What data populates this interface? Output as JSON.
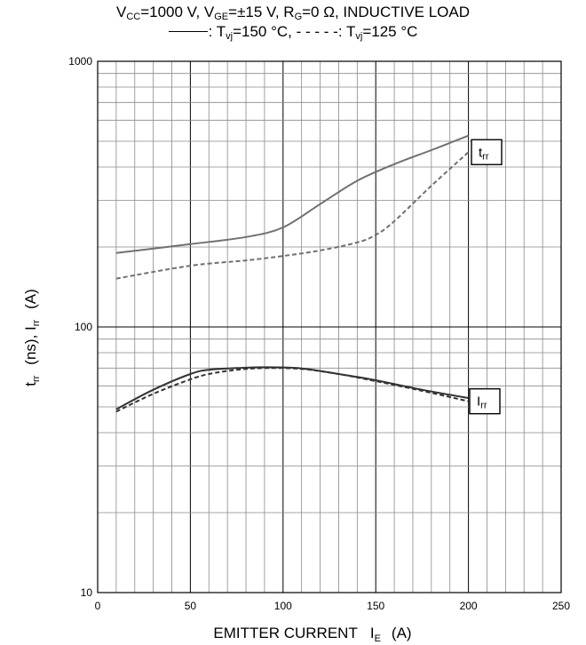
{
  "header": {
    "line1": {
      "v": "V",
      "v_sub": "CC",
      "a": "=1000 V, V",
      "a_sub": "GE",
      "b": "=±15 V, R",
      "b_sub": "G",
      "c": "=0 Ω, INDUCTIVE LOAD"
    },
    "line2": {
      "solid_legend": ": T",
      "solid_sub": "vj",
      "solid_value": "=150 °C, ",
      "dashed_legend": "- - - - -: T",
      "dashed_sub": "vj",
      "dashed_value": "=125 °C"
    }
  },
  "chart_data": {
    "type": "line",
    "xlabel": "EMITTER CURRENT",
    "xlabel_symbol": "I",
    "xlabel_symbol_sub": "E",
    "xlabel_unit": "(A)",
    "ylabel_t": "t",
    "ylabel_t_sub": "rr",
    "ylabel_mid": "(ns), I",
    "ylabel_i_sub": "rr",
    "ylabel_unit": "(A)",
    "xlim": [
      0,
      250
    ],
    "ylim": [
      10,
      1000
    ],
    "y_scale": "log",
    "x_ticks": [
      "0",
      "50",
      "100",
      "150",
      "200",
      "250"
    ],
    "y_ticks": [
      "10",
      "100",
      "1000"
    ],
    "grid": true,
    "annotations": [
      {
        "letter": "t",
        "sub": "rr",
        "series": "trr"
      },
      {
        "letter": "I",
        "sub": "rr",
        "series": "Irr"
      }
    ],
    "series": [
      {
        "key": "trr_150",
        "style": "solid",
        "color": "#707070",
        "x": [
          10,
          50,
          80,
          100,
          120,
          140,
          160,
          180,
          200
        ],
        "y": [
          190,
          205,
          218,
          237,
          290,
          355,
          410,
          463,
          525
        ]
      },
      {
        "key": "trr_125",
        "style": "dashed",
        "color": "#707070",
        "x": [
          10,
          50,
          80,
          100,
          120,
          140,
          150,
          160,
          180,
          200
        ],
        "y": [
          152,
          170,
          178,
          185,
          194,
          208,
          222,
          250,
          340,
          455
        ]
      },
      {
        "key": "irr_150",
        "style": "solid",
        "color": "#333333",
        "x": [
          10,
          30,
          50,
          60,
          75,
          90,
          110,
          130,
          150,
          175,
          200
        ],
        "y": [
          49,
          58,
          66.5,
          69,
          70,
          70.5,
          69.8,
          66.5,
          63,
          58,
          54
        ]
      },
      {
        "key": "irr_125",
        "style": "dashed",
        "color": "#333333",
        "x": [
          10,
          30,
          50,
          60,
          75,
          90,
          110,
          130,
          150,
          175,
          200
        ],
        "y": [
          48,
          56,
          63.5,
          66.5,
          69,
          70,
          69.5,
          66.5,
          62.5,
          57.5,
          52.5
        ]
      }
    ]
  }
}
